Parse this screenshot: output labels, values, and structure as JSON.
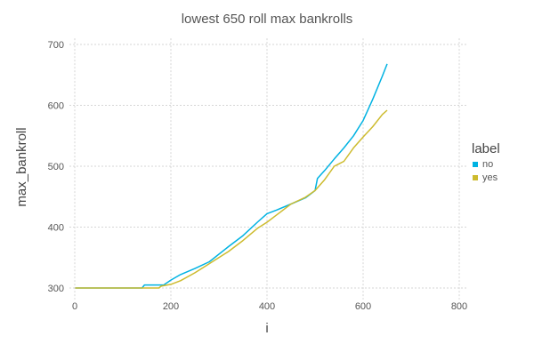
{
  "chart_data": {
    "type": "line",
    "title": "lowest 650 roll max bankrolls",
    "xlabel": "i",
    "ylabel": "max_bankroll",
    "xlim": [
      0,
      800
    ],
    "ylim": [
      290,
      710
    ],
    "x_ticks": [
      0,
      200,
      400,
      600,
      800
    ],
    "y_ticks": [
      300,
      400,
      500,
      600,
      700
    ],
    "grid": true,
    "legend": {
      "title": "label",
      "position": "right"
    },
    "series": [
      {
        "name": "no",
        "color": "#00b2e2",
        "points": [
          [
            1,
            300
          ],
          [
            140,
            300
          ],
          [
            145,
            305
          ],
          [
            185,
            305
          ],
          [
            200,
            313
          ],
          [
            220,
            322
          ],
          [
            250,
            332
          ],
          [
            280,
            343
          ],
          [
            320,
            368
          ],
          [
            350,
            386
          ],
          [
            380,
            408
          ],
          [
            400,
            422
          ],
          [
            420,
            428
          ],
          [
            450,
            438
          ],
          [
            480,
            448
          ],
          [
            500,
            460
          ],
          [
            505,
            480
          ],
          [
            520,
            493
          ],
          [
            540,
            512
          ],
          [
            560,
            530
          ],
          [
            580,
            550
          ],
          [
            600,
            575
          ],
          [
            620,
            610
          ],
          [
            640,
            648
          ],
          [
            650,
            668
          ]
        ]
      },
      {
        "name": "yes",
        "color": "#cdbb2e",
        "points": [
          [
            1,
            300
          ],
          [
            175,
            300
          ],
          [
            180,
            303
          ],
          [
            200,
            306
          ],
          [
            220,
            312
          ],
          [
            250,
            325
          ],
          [
            280,
            340
          ],
          [
            320,
            360
          ],
          [
            350,
            378
          ],
          [
            380,
            398
          ],
          [
            400,
            408
          ],
          [
            420,
            420
          ],
          [
            450,
            438
          ],
          [
            480,
            449
          ],
          [
            500,
            460
          ],
          [
            520,
            478
          ],
          [
            540,
            500
          ],
          [
            560,
            508
          ],
          [
            580,
            530
          ],
          [
            600,
            548
          ],
          [
            620,
            565
          ],
          [
            640,
            585
          ],
          [
            650,
            592
          ]
        ]
      }
    ]
  }
}
